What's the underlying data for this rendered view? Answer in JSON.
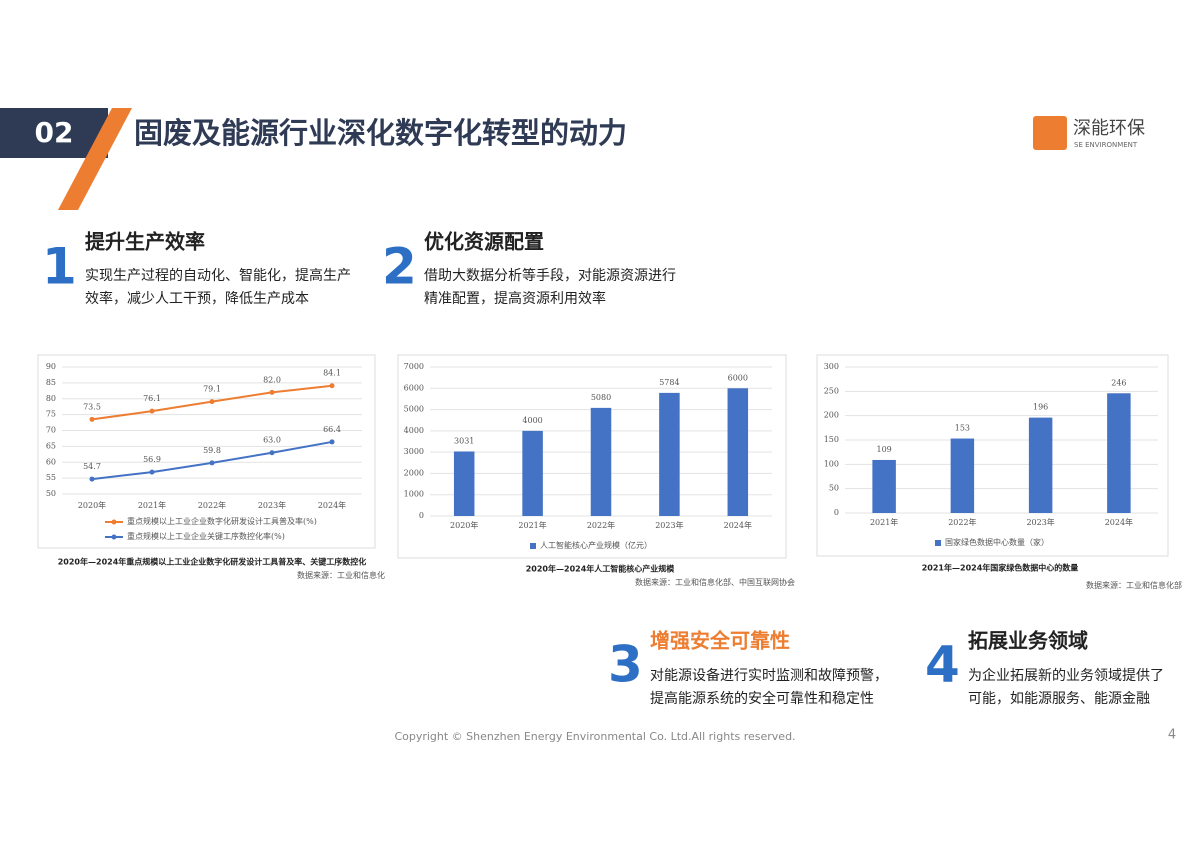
{
  "header": {
    "number": "02",
    "title": "固废及能源行业深化数字化转型的动力",
    "logo": "深能环保",
    "logo_sub": "SE ENVIRONMENT"
  },
  "points": [
    {
      "number": "1",
      "title": "提升生产效率",
      "lines": [
        "实现生产过程的自动化、智能化，提高生产",
        "效率，减少人工干预，降低生产成本"
      ]
    },
    {
      "number": "2",
      "title": "优化资源配置",
      "lines": [
        "借助大数据分析等手段，对能源资源进行",
        "精准配置，提高资源利用效率"
      ]
    },
    {
      "number": "3",
      "title": "增强安全可靠性",
      "lines": [
        "对能源设备进行实时监测和故障预警，",
        "提高能源系统的安全可靠性和稳定性"
      ]
    },
    {
      "number": "4",
      "title": "拓展业务领域",
      "lines": [
        "为企业拓展新的业务领域提供了",
        "可能，如能源服务、能源金融"
      ]
    }
  ],
  "chart_data": [
    {
      "type": "line",
      "caption": "2020年—2024年重点规模以上工业企业数字化研发设计工具普及率、关键工序数控化",
      "source": "数据来源：工业和信息化",
      "categories": [
        "2020年",
        "2021年",
        "2022年",
        "2023年",
        "2024年"
      ],
      "series": [
        {
          "name": "重点规模以上工业企业数字化研发设计工具普及率(%)",
          "color": "#ed7d31",
          "values": [
            73.5,
            76.1,
            79.1,
            82.0,
            84.1
          ],
          "value_labels": [
            "73.5",
            "76.1",
            "79.1",
            "82.0",
            "84.1"
          ]
        },
        {
          "name": "重点规模以上工业企业关键工序数控化率(%)",
          "color": "#4472c4",
          "values": [
            54.7,
            56.9,
            59.8,
            63.0,
            66.4
          ],
          "value_labels": [
            "54.7",
            "56.9",
            "59.8",
            "63.0",
            "66.4"
          ]
        }
      ],
      "ylim": [
        50,
        90
      ],
      "yticks": [
        50,
        55,
        60,
        65,
        70,
        75,
        80,
        85,
        90
      ],
      "grid": true
    },
    {
      "type": "bar",
      "caption": "2020年—2024年人工智能核心产业规模",
      "source": "数据来源：工业和信息化部、中国互联网协会",
      "categories": [
        "2020年",
        "2021年",
        "2022年",
        "2023年",
        "2024年"
      ],
      "series": [
        {
          "name": "人工智能核心产业规模（亿元）",
          "color": "#4472c4",
          "values": [
            3031,
            4000,
            5080,
            5784,
            6000
          ]
        }
      ],
      "ylim": [
        0,
        7000
      ],
      "yticks": [
        0,
        1000,
        2000,
        3000,
        4000,
        5000,
        6000,
        7000
      ],
      "grid": true
    },
    {
      "type": "bar",
      "caption": "2021年—2024年国家绿色数据中心的数量",
      "source": "数据来源：工业和信息化部",
      "categories": [
        "2021年",
        "2022年",
        "2023年",
        "2024年"
      ],
      "series": [
        {
          "name": "国家绿色数据中心数量（家）",
          "color": "#4472c4",
          "values": [
            109,
            153,
            196,
            246
          ]
        }
      ],
      "ylim": [
        0,
        300
      ],
      "yticks": [
        0,
        50,
        100,
        150,
        200,
        250,
        300
      ],
      "grid": true
    }
  ],
  "footer": {
    "copyright": "Copyright © Shenzhen Energy Environmental Co. Ltd.All rights reserved.",
    "page": "4"
  }
}
